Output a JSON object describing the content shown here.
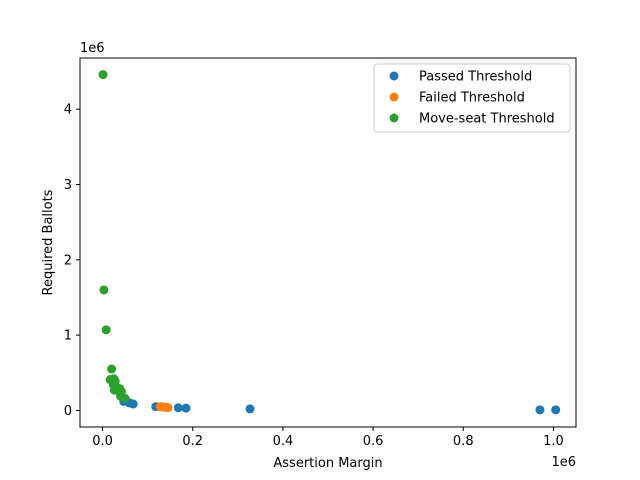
{
  "chart_data": {
    "type": "scatter",
    "xlabel": "Assertion Margin",
    "ylabel": "Required Ballots",
    "x_offset_text": "1e6",
    "y_offset_text": "1e6",
    "xlim": [
      -50000,
      1050000
    ],
    "ylim": [
      -220000,
      4680000
    ],
    "x_ticks": [
      0,
      200000,
      400000,
      600000,
      800000,
      1000000
    ],
    "x_tick_labels": [
      "0.0",
      "0.2",
      "0.4",
      "0.6",
      "0.8",
      "1.0"
    ],
    "y_ticks": [
      0,
      1000000,
      2000000,
      3000000,
      4000000
    ],
    "y_tick_labels": [
      "0",
      "1",
      "2",
      "3",
      "4"
    ],
    "legend_position": "top-right",
    "grid": false,
    "series": [
      {
        "name": "Passed Threshold",
        "color": "#1f77b4",
        "points": [
          [
            47000,
            120000
          ],
          [
            60000,
            100000
          ],
          [
            68000,
            85000
          ],
          [
            118000,
            50000
          ],
          [
            133000,
            45000
          ],
          [
            168000,
            35000
          ],
          [
            185000,
            30000
          ],
          [
            327000,
            20000
          ],
          [
            970000,
            8000
          ],
          [
            1005000,
            8000
          ]
        ]
      },
      {
        "name": "Failed Threshold",
        "color": "#ff7f0e",
        "points": [
          [
            128000,
            50000
          ],
          [
            136000,
            45000
          ],
          [
            141000,
            40000
          ],
          [
            145000,
            38000
          ]
        ]
      },
      {
        "name": "Move-seat Threshold",
        "color": "#2ca02c",
        "points": [
          [
            1000,
            4460000
          ],
          [
            3000,
            1600000
          ],
          [
            8000,
            1070000
          ],
          [
            20000,
            550000
          ],
          [
            17000,
            410000
          ],
          [
            25000,
            420000
          ],
          [
            28000,
            390000
          ],
          [
            24000,
            340000
          ],
          [
            30000,
            310000
          ],
          [
            38000,
            290000
          ],
          [
            26000,
            270000
          ],
          [
            35000,
            260000
          ],
          [
            42000,
            250000
          ],
          [
            40000,
            190000
          ],
          [
            50000,
            160000
          ]
        ]
      }
    ]
  }
}
